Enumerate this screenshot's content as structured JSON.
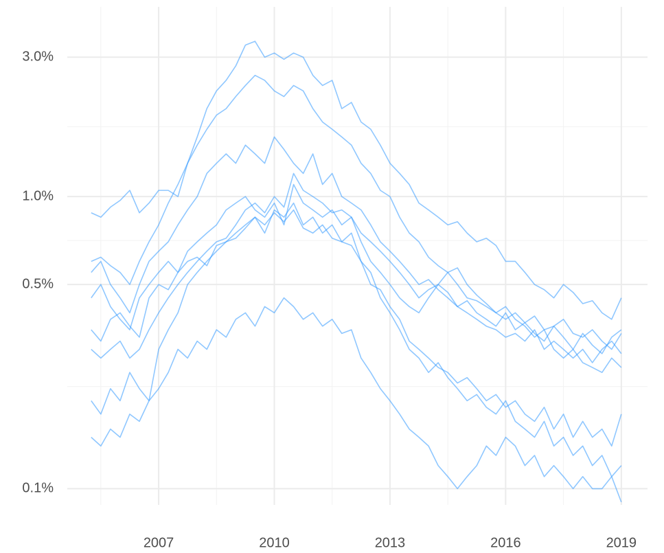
{
  "chart_data": {
    "type": "line",
    "log_y": true,
    "grid": true,
    "color": "#3399ff",
    "x": [
      2005.25,
      2005.5,
      2005.75,
      2006,
      2006.25,
      2006.5,
      2006.75,
      2007,
      2007.25,
      2007.5,
      2007.75,
      2008,
      2008.25,
      2008.5,
      2008.75,
      2009,
      2009.25,
      2009.5,
      2009.75,
      2010,
      2010.25,
      2010.5,
      2010.75,
      2011,
      2011.25,
      2011.5,
      2011.75,
      2012,
      2012.25,
      2012.5,
      2012.75,
      2013,
      2013.25,
      2013.5,
      2013.75,
      2014,
      2014.25,
      2014.5,
      2014.75,
      2015,
      2015.25,
      2015.5,
      2015.75,
      2016,
      2016.25,
      2016.5,
      2016.75,
      2017,
      2017.25,
      2017.5,
      2017.75,
      2018,
      2018.25,
      2018.5,
      2018.75,
      2019
    ],
    "series": [
      {
        "values": [
          0.88,
          0.85,
          0.92,
          0.97,
          1.05,
          0.88,
          0.95,
          1.05,
          1.05,
          1.0,
          1.3,
          1.6,
          2.0,
          2.3,
          2.5,
          2.8,
          3.3,
          3.4,
          3.0,
          3.1,
          2.95,
          3.1,
          3.0,
          2.6,
          2.4,
          2.5,
          2.0,
          2.1,
          1.8,
          1.7,
          1.5,
          1.3,
          1.2,
          1.1,
          0.95,
          0.9,
          0.85,
          0.8,
          0.82,
          0.75,
          0.7,
          0.72,
          0.68,
          0.6,
          0.6,
          0.55,
          0.5,
          0.48,
          0.45,
          0.5,
          0.47,
          0.43,
          0.44,
          0.4,
          0.38,
          0.45
        ]
      },
      {
        "values": [
          0.55,
          0.6,
          0.5,
          0.45,
          0.4,
          0.5,
          0.6,
          0.65,
          0.7,
          0.8,
          0.9,
          1.0,
          1.2,
          1.3,
          1.4,
          1.3,
          1.5,
          1.4,
          1.3,
          1.6,
          1.45,
          1.3,
          1.2,
          1.4,
          1.1,
          1.2,
          1.0,
          0.95,
          0.9,
          0.8,
          0.7,
          0.65,
          0.6,
          0.55,
          0.5,
          0.52,
          0.48,
          0.45,
          0.42,
          0.44,
          0.4,
          0.38,
          0.36,
          0.4,
          0.35,
          0.37,
          0.34,
          0.32,
          0.36,
          0.33,
          0.3,
          0.34,
          0.31,
          0.29,
          0.33,
          0.35
        ]
      },
      {
        "values": [
          0.45,
          0.5,
          0.42,
          0.38,
          0.35,
          0.45,
          0.5,
          0.55,
          0.6,
          0.55,
          0.65,
          0.7,
          0.75,
          0.8,
          0.9,
          0.95,
          1.0,
          0.9,
          0.85,
          0.95,
          0.8,
          1.1,
          0.95,
          0.9,
          0.85,
          0.9,
          0.8,
          0.85,
          0.7,
          0.6,
          0.55,
          0.5,
          0.45,
          0.42,
          0.4,
          0.45,
          0.5,
          0.47,
          0.42,
          0.4,
          0.38,
          0.36,
          0.35,
          0.33,
          0.34,
          0.32,
          0.35,
          0.3,
          0.32,
          0.3,
          0.28,
          0.3,
          0.27,
          0.3,
          0.32,
          0.29
        ]
      },
      {
        "values": [
          0.2,
          0.18,
          0.22,
          0.2,
          0.25,
          0.22,
          0.2,
          0.3,
          0.35,
          0.4,
          0.5,
          0.55,
          0.6,
          0.65,
          0.7,
          0.75,
          0.8,
          0.85,
          0.75,
          0.9,
          0.85,
          0.95,
          0.8,
          0.85,
          0.75,
          0.8,
          0.7,
          0.75,
          0.6,
          0.55,
          0.45,
          0.4,
          0.35,
          0.3,
          0.28,
          0.25,
          0.27,
          0.24,
          0.22,
          0.2,
          0.21,
          0.19,
          0.18,
          0.2,
          0.17,
          0.16,
          0.15,
          0.17,
          0.14,
          0.15,
          0.13,
          0.14,
          0.12,
          0.13,
          0.11,
          0.12
        ]
      },
      {
        "values": [
          0.15,
          0.14,
          0.16,
          0.15,
          0.18,
          0.17,
          0.2,
          0.22,
          0.25,
          0.3,
          0.28,
          0.32,
          0.3,
          0.35,
          0.33,
          0.38,
          0.4,
          0.36,
          0.42,
          0.4,
          0.45,
          0.42,
          0.38,
          0.4,
          0.36,
          0.38,
          0.34,
          0.35,
          0.28,
          0.25,
          0.22,
          0.2,
          0.18,
          0.16,
          0.15,
          0.14,
          0.12,
          0.11,
          0.1,
          0.11,
          0.12,
          0.14,
          0.13,
          0.15,
          0.14,
          0.12,
          0.13,
          0.11,
          0.12,
          0.11,
          0.1,
          0.11,
          0.1,
          0.1,
          0.11,
          0.09
        ]
      },
      {
        "values": [
          0.3,
          0.28,
          0.3,
          0.32,
          0.28,
          0.3,
          0.35,
          0.4,
          0.45,
          0.5,
          0.55,
          0.6,
          0.65,
          0.7,
          0.72,
          0.8,
          0.9,
          0.95,
          0.88,
          1.0,
          0.92,
          1.2,
          1.05,
          1.0,
          0.95,
          0.88,
          0.9,
          0.85,
          0.75,
          0.7,
          0.65,
          0.6,
          0.55,
          0.5,
          0.45,
          0.48,
          0.5,
          0.55,
          0.5,
          0.45,
          0.44,
          0.42,
          0.4,
          0.38,
          0.4,
          0.37,
          0.39,
          0.35,
          0.36,
          0.38,
          0.34,
          0.33,
          0.35,
          0.32,
          0.3,
          0.34
        ]
      },
      {
        "values": [
          0.6,
          0.62,
          0.58,
          0.55,
          0.5,
          0.6,
          0.7,
          0.8,
          0.95,
          1.1,
          1.3,
          1.5,
          1.7,
          1.9,
          2.0,
          2.2,
          2.4,
          2.6,
          2.5,
          2.3,
          2.2,
          2.4,
          2.3,
          2.0,
          1.8,
          1.7,
          1.6,
          1.5,
          1.3,
          1.2,
          1.05,
          1.0,
          0.85,
          0.75,
          0.7,
          0.62,
          0.58,
          0.55,
          0.57,
          0.5,
          0.46,
          0.43,
          0.4,
          0.42,
          0.38,
          0.36,
          0.33,
          0.35,
          0.3,
          0.28,
          0.3,
          0.27,
          0.26,
          0.25,
          0.28,
          0.26
        ]
      },
      {
        "values": [
          0.35,
          0.32,
          0.38,
          0.4,
          0.36,
          0.33,
          0.45,
          0.5,
          0.48,
          0.55,
          0.6,
          0.62,
          0.58,
          0.68,
          0.7,
          0.72,
          0.78,
          0.85,
          0.8,
          0.88,
          0.82,
          0.9,
          0.78,
          0.75,
          0.8,
          0.72,
          0.7,
          0.68,
          0.6,
          0.5,
          0.48,
          0.42,
          0.38,
          0.32,
          0.3,
          0.28,
          0.26,
          0.25,
          0.23,
          0.24,
          0.22,
          0.2,
          0.21,
          0.19,
          0.2,
          0.18,
          0.17,
          0.19,
          0.16,
          0.18,
          0.15,
          0.17,
          0.15,
          0.16,
          0.14,
          0.18
        ]
      }
    ],
    "xlim": [
      2004.63,
      2019.68
    ],
    "xticks": [
      2007,
      2010,
      2013,
      2016,
      2019
    ],
    "ylim": [
      0.088,
      4.46
    ],
    "yticks": [
      {
        "value": 0.1,
        "label": "0.1%"
      },
      {
        "value": 0.5,
        "label": "0.5%"
      },
      {
        "value": 1,
        "label": "1.0%"
      },
      {
        "value": 3,
        "label": "3.0%"
      }
    ]
  }
}
